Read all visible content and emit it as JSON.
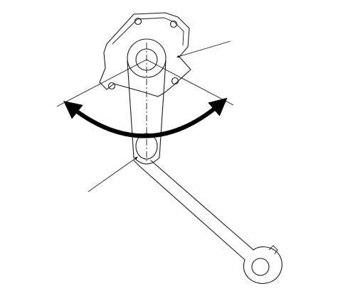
{
  "colors": {
    "background": "#ffffff",
    "ink": "#1a1a1a",
    "arrow": "#000000"
  },
  "figure": {
    "description_visible_text": ""
  }
}
